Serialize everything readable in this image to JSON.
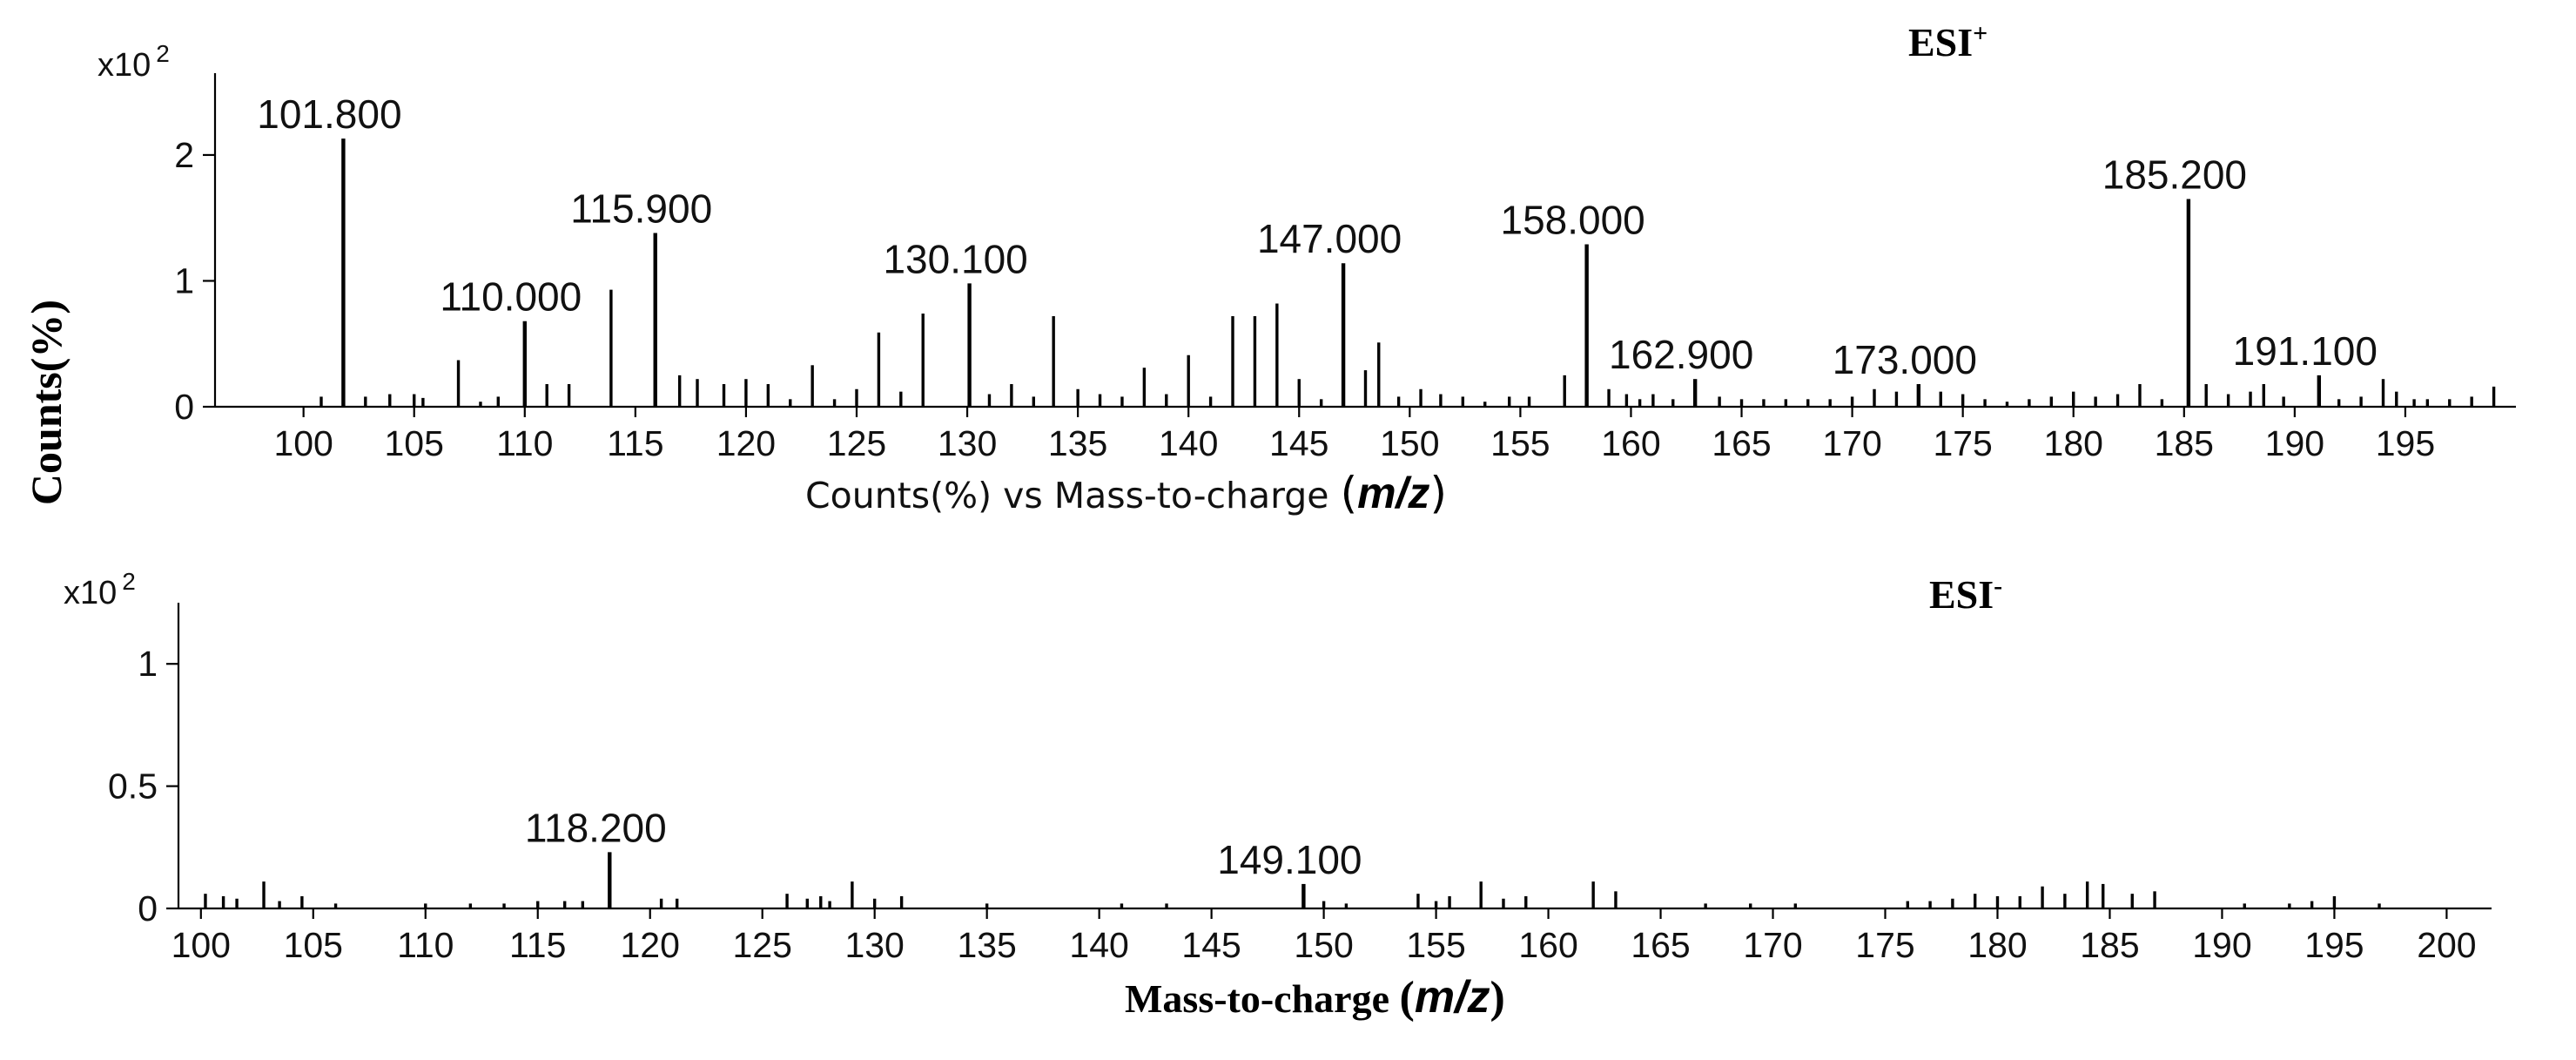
{
  "chart_data": [
    {
      "type": "bar",
      "ion_mode": "ESI+",
      "ion_mode_base": "ESI",
      "ion_mode_sign": "+",
      "y_multiplier": {
        "base": "x10",
        "exp": "2"
      },
      "xlabel_prefix": "Counts(%) vs Mass-to-charge ",
      "xlabel_open": "(",
      "xlabel_mz": "m/z",
      "xlabel_close": ")",
      "ylabel": "Counts(%)",
      "xlim": [
        96,
        200
      ],
      "ylim": [
        0,
        2.65
      ],
      "xticks": [
        100,
        105,
        110,
        115,
        120,
        125,
        130,
        135,
        140,
        145,
        150,
        155,
        160,
        165,
        170,
        175,
        180,
        185,
        190,
        195
      ],
      "yticks": [
        0,
        1,
        2
      ],
      "labeled_peaks": [
        {
          "mz": 101.8,
          "label": "101.800",
          "value": 2.13
        },
        {
          "mz": 110.0,
          "label": "110.000",
          "value": 0.68
        },
        {
          "mz": 115.9,
          "label": "115.900",
          "value": 1.38
        },
        {
          "mz": 130.1,
          "label": "130.100",
          "value": 0.98
        },
        {
          "mz": 147.0,
          "label": "147.000",
          "value": 1.14
        },
        {
          "mz": 158.0,
          "label": "158.000",
          "value": 1.29
        },
        {
          "mz": 162.9,
          "label": "162.900",
          "value": 0.22
        },
        {
          "mz": 173.0,
          "label": "173.000",
          "value": 0.18
        },
        {
          "mz": 185.2,
          "label": "185.200",
          "value": 1.65
        },
        {
          "mz": 191.1,
          "label": "191.100",
          "value": 0.25
        }
      ],
      "peaks": [
        [
          100.8,
          0.08
        ],
        [
          102.8,
          0.08
        ],
        [
          103.9,
          0.1
        ],
        [
          105.0,
          0.1
        ],
        [
          105.4,
          0.07
        ],
        [
          107.0,
          0.37
        ],
        [
          108.0,
          0.04
        ],
        [
          108.8,
          0.08
        ],
        [
          111.0,
          0.18
        ],
        [
          112.0,
          0.18
        ],
        [
          113.9,
          0.93
        ],
        [
          117.0,
          0.25
        ],
        [
          117.8,
          0.22
        ],
        [
          119.0,
          0.18
        ],
        [
          120.0,
          0.22
        ],
        [
          121.0,
          0.18
        ],
        [
          122.0,
          0.06
        ],
        [
          123.0,
          0.33
        ],
        [
          124.0,
          0.06
        ],
        [
          125.0,
          0.14
        ],
        [
          126.0,
          0.59
        ],
        [
          127.0,
          0.12
        ],
        [
          128.0,
          0.74
        ],
        [
          131.0,
          0.1
        ],
        [
          132.0,
          0.18
        ],
        [
          133.0,
          0.08
        ],
        [
          133.9,
          0.72
        ],
        [
          135.0,
          0.14
        ],
        [
          136.0,
          0.1
        ],
        [
          137.0,
          0.08
        ],
        [
          138.0,
          0.31
        ],
        [
          139.0,
          0.1
        ],
        [
          140.0,
          0.41
        ],
        [
          141.0,
          0.08
        ],
        [
          142.0,
          0.72
        ],
        [
          143.0,
          0.72
        ],
        [
          144.0,
          0.82
        ],
        [
          145.0,
          0.22
        ],
        [
          146.0,
          0.06
        ],
        [
          148.0,
          0.29
        ],
        [
          148.6,
          0.51
        ],
        [
          149.5,
          0.08
        ],
        [
          150.5,
          0.14
        ],
        [
          151.4,
          0.1
        ],
        [
          152.4,
          0.08
        ],
        [
          153.4,
          0.04
        ],
        [
          154.5,
          0.08
        ],
        [
          155.4,
          0.08
        ],
        [
          157.0,
          0.25
        ],
        [
          159.0,
          0.14
        ],
        [
          159.8,
          0.1
        ],
        [
          160.4,
          0.06
        ],
        [
          161.0,
          0.1
        ],
        [
          161.9,
          0.06
        ],
        [
          164.0,
          0.08
        ],
        [
          165.0,
          0.06
        ],
        [
          166.0,
          0.06
        ],
        [
          167.0,
          0.06
        ],
        [
          168.0,
          0.06
        ],
        [
          169.0,
          0.06
        ],
        [
          170.0,
          0.08
        ],
        [
          171.0,
          0.14
        ],
        [
          172.0,
          0.12
        ],
        [
          174.0,
          0.12
        ],
        [
          175.0,
          0.1
        ],
        [
          176.0,
          0.06
        ],
        [
          177.0,
          0.04
        ],
        [
          178.0,
          0.06
        ],
        [
          179.0,
          0.08
        ],
        [
          180.0,
          0.12
        ],
        [
          181.0,
          0.08
        ],
        [
          182.0,
          0.1
        ],
        [
          183.0,
          0.18
        ],
        [
          184.0,
          0.06
        ],
        [
          186.0,
          0.18
        ],
        [
          187.0,
          0.1
        ],
        [
          188.0,
          0.12
        ],
        [
          188.6,
          0.18
        ],
        [
          189.5,
          0.08
        ],
        [
          192.0,
          0.06
        ],
        [
          193.0,
          0.08
        ],
        [
          194.0,
          0.22
        ],
        [
          194.6,
          0.12
        ],
        [
          195.4,
          0.06
        ],
        [
          196.0,
          0.06
        ],
        [
          197.0,
          0.06
        ],
        [
          198.0,
          0.08
        ],
        [
          199.0,
          0.16
        ]
      ]
    },
    {
      "type": "bar",
      "ion_mode": "ESI-",
      "ion_mode_base": "ESI",
      "ion_mode_sign": "-",
      "y_multiplier": {
        "base": "x10",
        "exp": "2"
      },
      "xlabel_prefix": "Mass-to-charge ",
      "xlabel_open": "(",
      "xlabel_mz": "m/z",
      "xlabel_close": ")",
      "ylabel": "",
      "xlim": [
        99,
        202
      ],
      "ylim": [
        0,
        1.25
      ],
      "xticks": [
        100,
        105,
        110,
        115,
        120,
        125,
        130,
        135,
        140,
        145,
        150,
        155,
        160,
        165,
        170,
        175,
        180,
        185,
        190,
        195,
        200
      ],
      "yticks": [
        0,
        0.5,
        1
      ],
      "ytick_labels": [
        "0",
        "0.5",
        "1"
      ],
      "labeled_peaks": [
        {
          "mz": 118.2,
          "label": "118.200",
          "value": 0.23
        },
        {
          "mz": 149.1,
          "label": "149.100",
          "value": 0.1
        }
      ],
      "peaks": [
        [
          100.2,
          0.06
        ],
        [
          101.0,
          0.05
        ],
        [
          101.6,
          0.04
        ],
        [
          102.8,
          0.11
        ],
        [
          103.5,
          0.03
        ],
        [
          104.5,
          0.05
        ],
        [
          106.0,
          0.02
        ],
        [
          110.0,
          0.02
        ],
        [
          112.0,
          0.02
        ],
        [
          113.5,
          0.02
        ],
        [
          115.0,
          0.03
        ],
        [
          116.2,
          0.03
        ],
        [
          117.0,
          0.03
        ],
        [
          120.5,
          0.04
        ],
        [
          121.2,
          0.04
        ],
        [
          126.1,
          0.06
        ],
        [
          127.0,
          0.04
        ],
        [
          127.6,
          0.05
        ],
        [
          128.0,
          0.03
        ],
        [
          129.0,
          0.11
        ],
        [
          130.0,
          0.04
        ],
        [
          131.2,
          0.05
        ],
        [
          135.0,
          0.02
        ],
        [
          141.0,
          0.02
        ],
        [
          143.0,
          0.02
        ],
        [
          150.0,
          0.03
        ],
        [
          151.0,
          0.02
        ],
        [
          154.2,
          0.06
        ],
        [
          155.0,
          0.03
        ],
        [
          155.6,
          0.05
        ],
        [
          157.0,
          0.11
        ],
        [
          158.0,
          0.04
        ],
        [
          159.0,
          0.05
        ],
        [
          162.0,
          0.11
        ],
        [
          163.0,
          0.07
        ],
        [
          167.0,
          0.02
        ],
        [
          169.0,
          0.02
        ],
        [
          171.0,
          0.02
        ],
        [
          176.0,
          0.03
        ],
        [
          177.0,
          0.03
        ],
        [
          178.0,
          0.04
        ],
        [
          179.0,
          0.06
        ],
        [
          180.0,
          0.05
        ],
        [
          181.0,
          0.05
        ],
        [
          182.0,
          0.09
        ],
        [
          183.0,
          0.06
        ],
        [
          184.0,
          0.11
        ],
        [
          184.7,
          0.1
        ],
        [
          186.0,
          0.06
        ],
        [
          187.0,
          0.07
        ],
        [
          191.0,
          0.02
        ],
        [
          193.0,
          0.02
        ],
        [
          194.0,
          0.03
        ],
        [
          195.0,
          0.05
        ],
        [
          197.0,
          0.02
        ]
      ]
    }
  ]
}
